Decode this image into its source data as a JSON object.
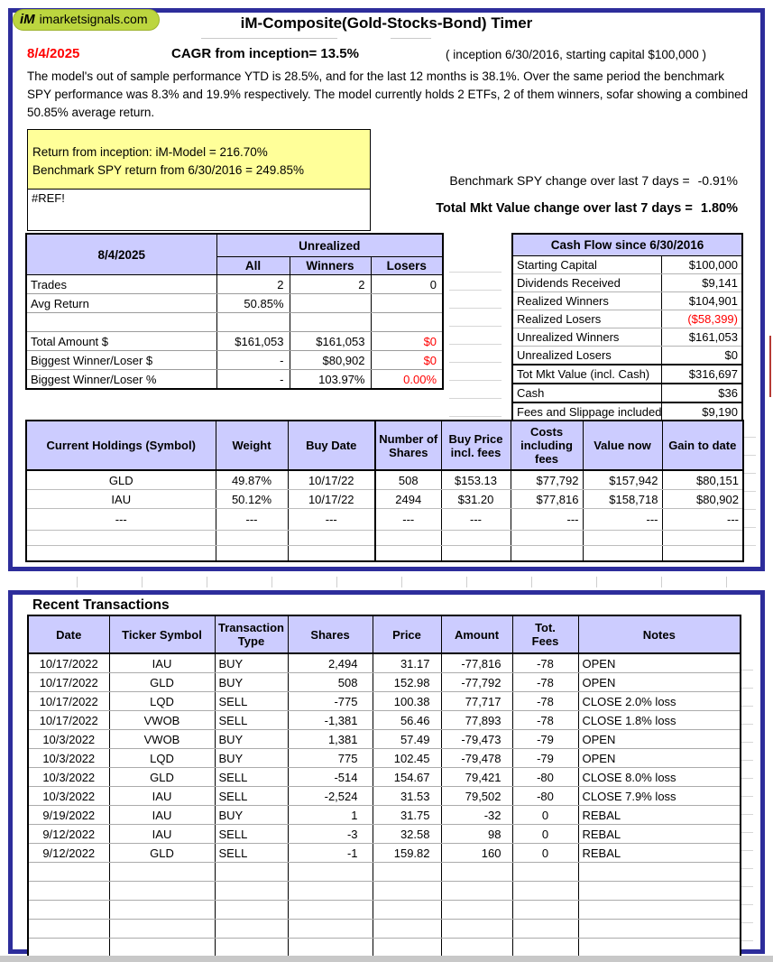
{
  "logo": {
    "mark": "iM",
    "domain": "imarketsignals.com"
  },
  "header": {
    "title": "iM-Composite(Gold-Stocks-Bond) Timer",
    "date": "8/4/2025",
    "cagr_line": "CAGR from inception= 13.5%",
    "inception_note": "( inception 6/30/2016,  starting capital $100,000 )",
    "summary": "The model's out of sample performance YTD is 28.5%, and for the last 12 months is 38.1%. Over the same period the benchmark SPY performance was  8.3% and 19.9% respectively. The model currently holds 2 ETFs, 2 of them winners, sofar showing a combined 50.85% average return."
  },
  "returns_box": {
    "model_return_line": "Return from inception: iM-Model =  216.70%",
    "benchmark_return_line": "Benchmark SPY return from 6/30/2016 =  249.85%"
  },
  "ref_error": "#REF!",
  "weekly": {
    "spy_label": "Benchmark SPY change over last 7 days =",
    "spy_value": "-0.91%",
    "mkt_label": "Total Mkt Value change over last 7 days =",
    "mkt_value": "1.80%"
  },
  "unrealized": {
    "date": "8/4/2025",
    "group": "Unrealized",
    "cols": [
      "All",
      "Winners",
      "Losers"
    ],
    "rows": [
      [
        "Trades",
        "2",
        "2",
        "0"
      ],
      [
        "Avg Return",
        "50.85%",
        "",
        ""
      ],
      [
        "",
        "",
        "",
        ""
      ],
      [
        "Total Amount $",
        "$161,053",
        "$161,053",
        {
          "v": "$0",
          "neg": true
        }
      ],
      [
        "Biggest Winner/Loser $",
        "-",
        "$80,902",
        {
          "v": "$0",
          "neg": true
        }
      ],
      [
        "Biggest Winner/Loser %",
        "-",
        "103.97%",
        {
          "v": "0.00%",
          "neg": true
        }
      ]
    ]
  },
  "cashflow": {
    "title": "Cash Flow since 6/30/2016",
    "rows": [
      [
        "Starting Capital",
        "$100,000"
      ],
      [
        "Dividends Received",
        "$9,141"
      ],
      [
        "Realized Winners",
        "$104,901"
      ],
      [
        "Realized Losers",
        {
          "v": "($58,399)",
          "neg": true
        }
      ],
      [
        "Unrealized Winners",
        "$161,053"
      ],
      [
        "Unrealized Losers",
        "$0"
      ],
      [
        "Tot Mkt Value (incl. Cash)",
        "$316,697"
      ],
      [
        "Cash",
        "$36"
      ],
      [
        "Fees and Slippage included",
        "$9,190"
      ]
    ]
  },
  "holdings": {
    "headers": [
      "Current Holdings  (Symbol)",
      "Weight",
      "Buy Date",
      "Number of\nShares",
      "Buy Price\nincl. fees",
      "Costs\nincluding\nfees",
      "Value now",
      "Gain to date"
    ],
    "rows": [
      [
        "GLD",
        "49.87%",
        "10/17/22",
        "508",
        "$153.13",
        "$77,792",
        "$157,942",
        "$80,151"
      ],
      [
        "IAU",
        "50.12%",
        "10/17/22",
        "2494",
        "$31.20",
        "$77,816",
        "$158,718",
        "$80,902"
      ],
      [
        "---",
        "---",
        "---",
        "---",
        "---",
        "---",
        "---",
        "---"
      ],
      [
        "",
        "",
        "",
        "",
        "",
        "",
        "",
        ""
      ],
      [
        "",
        "",
        "",
        "",
        "",
        "",
        "",
        ""
      ]
    ]
  },
  "transactions": {
    "title": "Recent Transactions",
    "headers": [
      "Date",
      "Ticker Symbol",
      "Transaction\nType",
      "Shares",
      "Price",
      "Amount",
      "Tot.\nFees",
      "Notes"
    ],
    "rows": [
      [
        "10/17/2022",
        "IAU",
        "BUY",
        "2,494",
        "31.17",
        "-77,816",
        "-78",
        "OPEN"
      ],
      [
        "10/17/2022",
        "GLD",
        "BUY",
        "508",
        "152.98",
        "-77,792",
        "-78",
        "OPEN"
      ],
      [
        "10/17/2022",
        "LQD",
        "SELL",
        "-775",
        "100.38",
        "77,717",
        "-78",
        "CLOSE 2.0% loss"
      ],
      [
        "10/17/2022",
        "VWOB",
        "SELL",
        "-1,381",
        "56.46",
        "77,893",
        "-78",
        "CLOSE 1.8% loss"
      ],
      [
        "10/3/2022",
        "VWOB",
        "BUY",
        "1,381",
        "57.49",
        "-79,473",
        "-79",
        "OPEN"
      ],
      [
        "10/3/2022",
        "LQD",
        "BUY",
        "775",
        "102.45",
        "-79,478",
        "-79",
        "OPEN"
      ],
      [
        "10/3/2022",
        "GLD",
        "SELL",
        "-514",
        "154.67",
        "79,421",
        "-80",
        "CLOSE 8.0% loss"
      ],
      [
        "10/3/2022",
        "IAU",
        "SELL",
        "-2,524",
        "31.53",
        "79,502",
        "-80",
        "CLOSE 7.9% loss"
      ],
      [
        "9/19/2022",
        "IAU",
        "BUY",
        "1",
        "31.75",
        "-32",
        "0",
        "REBAL"
      ],
      [
        "9/12/2022",
        "IAU",
        "SELL",
        "-3",
        "32.58",
        "98",
        "0",
        "REBAL"
      ],
      [
        "9/12/2022",
        "GLD",
        "SELL",
        "-1",
        "159.82",
        "160",
        "0",
        "REBAL"
      ],
      [
        "",
        "",
        "",
        "",
        "",
        "",
        "",
        ""
      ],
      [
        "",
        "",
        "",
        "",
        "",
        "",
        "",
        ""
      ],
      [
        "",
        "",
        "",
        "",
        "",
        "",
        "",
        ""
      ],
      [
        "",
        "",
        "",
        "",
        "",
        "",
        "",
        ""
      ],
      [
        "",
        "",
        "",
        "",
        "",
        "",
        "",
        ""
      ]
    ]
  },
  "colors": {
    "panel_border": "#2d2d9b",
    "table_header_bg": "#ccccff",
    "highlight_yellow": "#ffff99",
    "negative_red": "#ff0000",
    "logo_green": "#bcd63f"
  }
}
